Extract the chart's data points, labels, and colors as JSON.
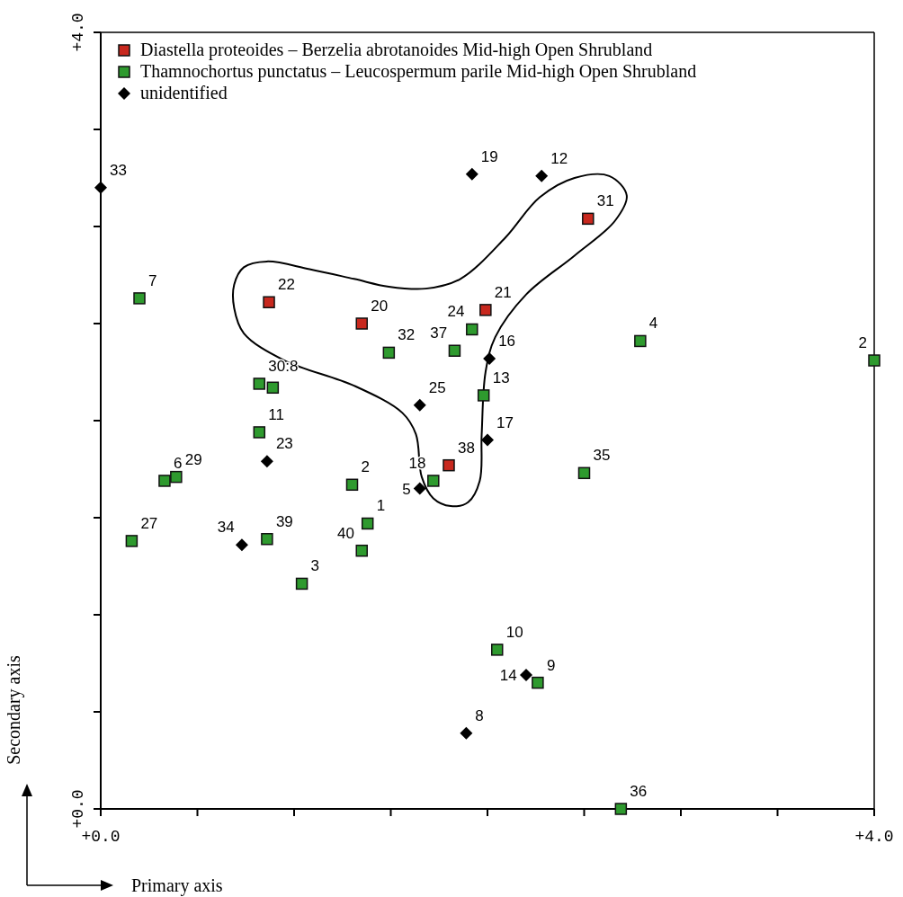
{
  "chart_data": {
    "type": "scatter",
    "xlabel": "Primary axis",
    "ylabel": "Secondary axis",
    "xlim": [
      0,
      4
    ],
    "ylim": [
      0,
      4
    ],
    "xticks": [
      {
        "value": 0,
        "label": "+0.0"
      },
      {
        "value": 0.5,
        "label": null
      },
      {
        "value": 1,
        "label": null
      },
      {
        "value": 1.5,
        "label": null
      },
      {
        "value": 2,
        "label": null
      },
      {
        "value": 2.5,
        "label": null
      },
      {
        "value": 3,
        "label": null
      },
      {
        "value": 3.5,
        "label": null
      },
      {
        "value": 4,
        "label": "+4.0"
      }
    ],
    "yticks": [
      {
        "value": 0,
        "label": "+0.0"
      },
      {
        "value": 0.5,
        "label": null
      },
      {
        "value": 1,
        "label": null
      },
      {
        "value": 1.5,
        "label": null
      },
      {
        "value": 2,
        "label": null
      },
      {
        "value": 2.5,
        "label": null
      },
      {
        "value": 3,
        "label": null
      },
      {
        "value": 3.5,
        "label": null
      },
      {
        "value": 4,
        "label": "+4.0"
      }
    ],
    "grid": false,
    "legend": "top left",
    "series": [
      {
        "name": "Diastella proteoides – Berzelia abrotanoides Mid-high Open Shrubland",
        "color": "#c8281e",
        "marker": "square",
        "x": [
          0.87,
          1.35,
          1.99,
          2.52,
          1.8
        ],
        "values": [
          2.61,
          2.5,
          2.57,
          3.04,
          1.77
        ]
      },
      {
        "name": "Thamnochortus punctatus – Leucospermum parile Mid-high Open Shrubland",
        "color": "#2e9a2e",
        "marker": "square",
        "x": [
          0.2,
          1.49,
          1.92,
          1.83,
          1.98,
          2.79,
          4.0,
          0.82,
          0.89,
          0.82,
          0.33,
          0.39,
          0.16,
          0.86,
          1.04,
          1.3,
          1.38,
          1.35,
          1.72,
          2.5,
          2.05,
          2.26,
          2.69
        ],
        "values": [
          2.63,
          2.35,
          2.47,
          2.36,
          2.13,
          2.41,
          2.31,
          2.19,
          2.17,
          1.94,
          1.69,
          1.71,
          1.38,
          1.39,
          1.16,
          1.67,
          1.47,
          1.33,
          1.69,
          1.73,
          0.82,
          0.65,
          0.0
        ]
      },
      {
        "name": "unidentified",
        "color": "#000000",
        "marker": "diamond",
        "x": [
          2.01,
          2.0,
          0.86,
          0.73,
          1.65,
          1.65,
          2.2,
          1.89,
          1.92,
          2.28,
          0.0
        ],
        "values": [
          2.32,
          1.9,
          1.79,
          1.36,
          1.65,
          2.08,
          0.69,
          0.39,
          3.27,
          3.26,
          3.2
        ]
      }
    ],
    "annotations": [
      {
        "text": "22",
        "x": 0.87,
        "y": 2.61
      },
      {
        "text": "20",
        "x": 1.35,
        "y": 2.5
      },
      {
        "text": "21",
        "x": 1.99,
        "y": 2.57
      },
      {
        "text": "31",
        "x": 2.52,
        "y": 3.04
      },
      {
        "text": "38",
        "x": 1.8,
        "y": 1.77
      },
      {
        "text": "7",
        "x": 0.2,
        "y": 2.63
      },
      {
        "text": "32",
        "x": 1.49,
        "y": 2.35
      },
      {
        "text": "24",
        "x": 1.92,
        "y": 2.47
      },
      {
        "text": "37",
        "x": 1.83,
        "y": 2.36
      },
      {
        "text": "13",
        "x": 1.98,
        "y": 2.13
      },
      {
        "text": "4",
        "x": 2.79,
        "y": 2.41
      },
      {
        "text": "2",
        "x": 4.0,
        "y": 2.31
      },
      {
        "text": "30:8",
        "x": 0.82,
        "y": 2.19
      },
      {
        "text": "11",
        "x": 0.82,
        "y": 1.94
      },
      {
        "text": "6",
        "x": 0.33,
        "y": 1.69
      },
      {
        "text": "29",
        "x": 0.39,
        "y": 1.71
      },
      {
        "text": "27",
        "x": 0.16,
        "y": 1.38
      },
      {
        "text": "39",
        "x": 0.86,
        "y": 1.39
      },
      {
        "text": "3",
        "x": 1.04,
        "y": 1.16
      },
      {
        "text": "2",
        "x": 1.3,
        "y": 1.67
      },
      {
        "text": "1",
        "x": 1.38,
        "y": 1.47
      },
      {
        "text": "40",
        "x": 1.35,
        "y": 1.33
      },
      {
        "text": "18",
        "x": 1.72,
        "y": 1.69
      },
      {
        "text": "35",
        "x": 2.5,
        "y": 1.73
      },
      {
        "text": "10",
        "x": 2.05,
        "y": 0.82
      },
      {
        "text": "9",
        "x": 2.26,
        "y": 0.65
      },
      {
        "text": "36",
        "x": 2.69,
        "y": 0.0
      },
      {
        "text": "16",
        "x": 2.01,
        "y": 2.32
      },
      {
        "text": "17",
        "x": 2.0,
        "y": 1.9
      },
      {
        "text": "23",
        "x": 0.86,
        "y": 1.79
      },
      {
        "text": "34",
        "x": 0.73,
        "y": 1.36
      },
      {
        "text": "5",
        "x": 1.65,
        "y": 1.65
      },
      {
        "text": "25",
        "x": 1.65,
        "y": 2.08
      },
      {
        "text": "14",
        "x": 2.2,
        "y": 0.69
      },
      {
        "text": "8",
        "x": 1.89,
        "y": 0.39
      },
      {
        "text": "19",
        "x": 1.92,
        "y": 3.27
      },
      {
        "text": "12",
        "x": 2.28,
        "y": 3.26
      },
      {
        "text": "33",
        "x": 0.0,
        "y": 3.2
      }
    ]
  }
}
